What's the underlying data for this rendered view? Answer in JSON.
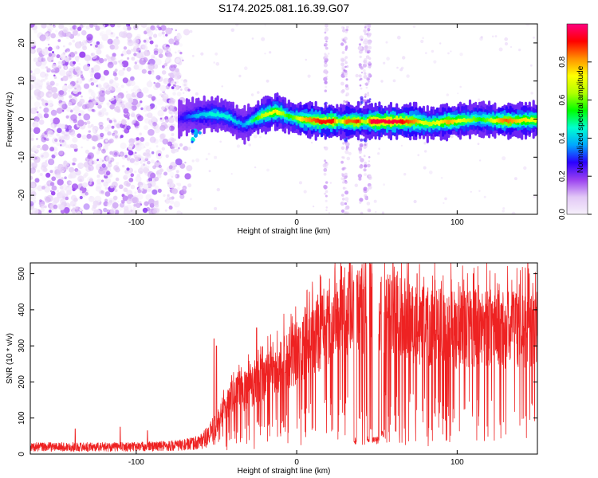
{
  "title": "S174.2025.081.16.39.G07",
  "chart_data": [
    {
      "type": "heatmap",
      "xlabel": "Height of straight line (km)",
      "ylabel": "Frequency (Hz)",
      "xlim": [
        -166,
        150
      ],
      "ylim": [
        -25,
        25
      ],
      "x_ticks": [
        -100,
        0,
        100
      ],
      "y_ticks": [
        -20,
        -10,
        0,
        10,
        20
      ],
      "colorbar": {
        "label": "Normalized spectral amplitude",
        "range": [
          0,
          1
        ],
        "ticks": [
          0.0,
          0.2,
          0.4,
          0.6,
          0.8
        ],
        "tick_labels": [
          "0.0",
          "0.2",
          "0.4",
          "0.6",
          "0.8"
        ],
        "colors": [
          "#f6f0fb",
          "#e2c8f6",
          "#9a40f0",
          "#2a00ff",
          "#00a6ff",
          "#00ffd0",
          "#00ff00",
          "#b0ff00",
          "#ffff00",
          "#ff9000",
          "#ff0000",
          "#ff0080"
        ]
      },
      "noise_region_x": [
        -166,
        -72
      ],
      "trace": {
        "x": [
          -74,
          -70,
          -66,
          -62,
          -58,
          -54,
          -50,
          -46,
          -42,
          -38,
          -34,
          -30,
          -26,
          -22,
          -18,
          -14,
          -10,
          -6,
          -2,
          2,
          6,
          10,
          14,
          18,
          22,
          26,
          30,
          34,
          38,
          42,
          46,
          50,
          54,
          58,
          62,
          66,
          70,
          74,
          78,
          82,
          86,
          90,
          94,
          98,
          102,
          106,
          110,
          114,
          118,
          122,
          126,
          130,
          134,
          138,
          142,
          146,
          150
        ],
        "y": [
          0.0,
          0.5,
          0.8,
          1.0,
          1.2,
          1.3,
          1.2,
          1.0,
          0.4,
          -0.8,
          -1.5,
          -0.8,
          0.2,
          1.0,
          1.5,
          2.0,
          1.5,
          0.7,
          0.3,
          0.0,
          -0.2,
          -0.3,
          -0.6,
          -0.6,
          -0.6,
          -0.6,
          -0.6,
          -0.6,
          -0.6,
          -0.6,
          -0.6,
          -0.6,
          -0.6,
          -0.6,
          -0.6,
          -0.6,
          -0.6,
          -0.6,
          -1.0,
          -1.2,
          -1.0,
          -0.8,
          -0.6,
          -0.5,
          -0.3,
          -0.2,
          0.0,
          0.0,
          -0.2,
          -0.3,
          -0.4,
          -0.4,
          -0.4,
          -0.3,
          -0.3,
          -0.2,
          -0.2
        ],
        "amplitude": [
          0.25,
          0.3,
          0.35,
          0.4,
          0.4,
          0.45,
          0.45,
          0.45,
          0.45,
          0.4,
          0.35,
          0.45,
          0.55,
          0.65,
          0.7,
          0.75,
          0.65,
          0.55,
          0.6,
          0.75,
          0.8,
          0.85,
          0.9,
          0.9,
          0.9,
          0.6,
          0.85,
          0.85,
          0.9,
          0.6,
          0.95,
          0.95,
          0.95,
          0.95,
          0.95,
          0.9,
          0.85,
          0.8,
          0.7,
          0.65,
          0.7,
          0.75,
          0.8,
          0.75,
          0.7,
          0.65,
          0.6,
          0.55,
          0.6,
          0.7,
          0.8,
          0.85,
          0.8,
          0.75,
          0.75,
          0.7,
          0.7
        ]
      },
      "vertical_streaks_x": [
        18,
        29,
        31,
        40,
        43,
        45
      ]
    },
    {
      "type": "line",
      "xlabel": "Height of straight line (km)",
      "ylabel": "SNR (10 * v/v)",
      "xlim": [
        -166,
        150
      ],
      "ylim": [
        0,
        530
      ],
      "x_ticks": [
        -100,
        0,
        100
      ],
      "y_ticks": [
        0,
        100,
        200,
        300,
        400,
        500
      ],
      "color": "#ee2222",
      "envelope": {
        "x": [
          -166,
          -150,
          -130,
          -110,
          -90,
          -75,
          -65,
          -60,
          -55,
          -52,
          -48,
          -44,
          -40,
          -35,
          -30,
          -25,
          -20,
          -15,
          -10,
          -5,
          0,
          5,
          10,
          15,
          20,
          25,
          30,
          35,
          40,
          45,
          50,
          55,
          60,
          70,
          80,
          90,
          100,
          110,
          120,
          130,
          140,
          150
        ],
        "y": [
          25,
          25,
          25,
          25,
          27,
          30,
          35,
          45,
          60,
          80,
          110,
          150,
          180,
          190,
          210,
          230,
          240,
          250,
          280,
          300,
          310,
          340,
          360,
          380,
          400,
          420,
          450,
          460,
          440,
          430,
          440,
          450,
          440,
          420,
          410,
          400,
          395,
          400,
          400,
          395,
          395,
          400
        ]
      },
      "dips": [
        {
          "x": 36.5,
          "width": 1.8,
          "y": 25
        },
        {
          "x": 44.5,
          "width": 1.5,
          "y": 30
        },
        {
          "x": 49.0,
          "width": 4.0,
          "y": 28
        },
        {
          "x": 53.5,
          "width": 1.5,
          "y": 45
        }
      ],
      "spikes": [
        {
          "x": -51.5,
          "y": 320
        },
        {
          "x": -50.0,
          "y": 300
        },
        {
          "x": -138,
          "y": 70
        },
        {
          "x": -110,
          "y": 75
        },
        {
          "x": -93,
          "y": 65
        },
        {
          "x": -25,
          "y": 350
        },
        {
          "x": 2,
          "y": 350
        },
        {
          "x": 22,
          "y": 420
        },
        {
          "x": 28,
          "y": 520
        },
        {
          "x": 33,
          "y": 530
        },
        {
          "x": 43,
          "y": 530
        },
        {
          "x": 47,
          "y": 500
        },
        {
          "x": 60,
          "y": 530
        },
        {
          "x": 75,
          "y": 500
        },
        {
          "x": 110,
          "y": 500
        },
        {
          "x": 144,
          "y": 530
        }
      ]
    }
  ]
}
